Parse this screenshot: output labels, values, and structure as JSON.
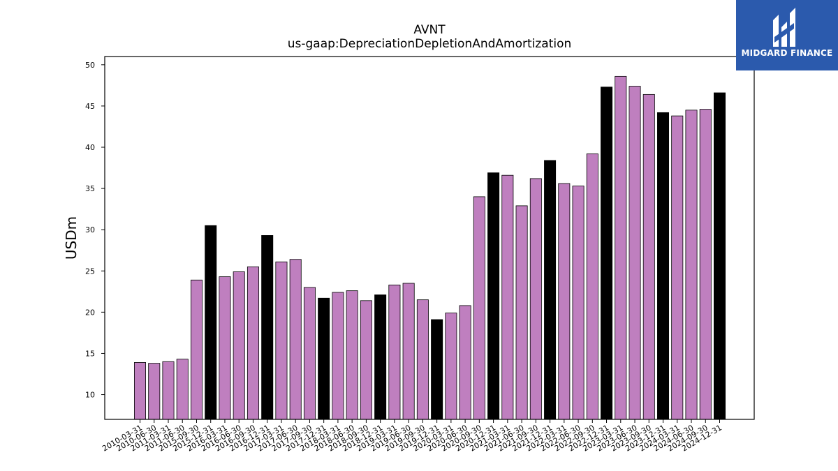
{
  "chart_data": {
    "type": "bar",
    "title": "AVNT",
    "subtitle": "us-gaap:DepreciationDepletionAndAmortization",
    "ylabel": "USDm",
    "xlabel": "",
    "ylim": [
      7,
      51
    ],
    "yticks": [
      10,
      15,
      20,
      25,
      30,
      35,
      40,
      45,
      50
    ],
    "grid": false,
    "colors": {
      "quarter": "#bf7fbf",
      "year_end": "#000000",
      "edge": "#000000"
    },
    "categories": [
      "2010-03-31",
      "2010-06-30",
      "2011-03-31",
      "2011-06-30",
      "2015-09-30",
      "2015-12-31",
      "2016-03-31",
      "2016-06-30",
      "2016-09-30",
      "2016-12-31",
      "2017-03-31",
      "2017-06-30",
      "2017-09-30",
      "2017-12-31",
      "2018-03-31",
      "2018-06-30",
      "2018-09-30",
      "2018-12-31",
      "2019-03-31",
      "2019-06-30",
      "2019-09-30",
      "2019-12-31",
      "2020-03-31",
      "2020-06-30",
      "2020-09-30",
      "2020-12-31",
      "2021-03-31",
      "2021-06-30",
      "2021-09-30",
      "2021-12-31",
      "2022-03-31",
      "2022-06-30",
      "2022-09-30",
      "2022-12-31",
      "2023-03-31",
      "2023-06-30",
      "2023-09-30",
      "2023-12-31",
      "2024-03-31",
      "2024-06-30",
      "2024-09-30",
      "2024-12-31"
    ],
    "values": [
      13.9,
      13.8,
      14.0,
      14.3,
      23.9,
      30.5,
      24.3,
      24.9,
      25.5,
      29.3,
      26.1,
      26.4,
      23.0,
      21.7,
      22.4,
      22.6,
      21.4,
      22.1,
      23.3,
      23.5,
      21.5,
      19.1,
      19.9,
      20.8,
      34.0,
      36.9,
      36.6,
      32.9,
      36.2,
      38.4,
      35.6,
      35.3,
      39.2,
      47.3,
      48.6,
      47.4,
      46.4,
      44.2,
      43.8,
      44.5,
      44.6,
      46.6
    ],
    "year_end": [
      false,
      false,
      false,
      false,
      false,
      true,
      false,
      false,
      false,
      true,
      false,
      false,
      false,
      true,
      false,
      false,
      false,
      true,
      false,
      false,
      false,
      true,
      false,
      false,
      false,
      true,
      false,
      false,
      false,
      true,
      false,
      false,
      false,
      true,
      false,
      false,
      false,
      true,
      false,
      false,
      false,
      true
    ]
  },
  "logo": {
    "text": "MIDGARD FINANCE",
    "icon": "midgard-logo-icon",
    "background": "#2b5aad"
  }
}
